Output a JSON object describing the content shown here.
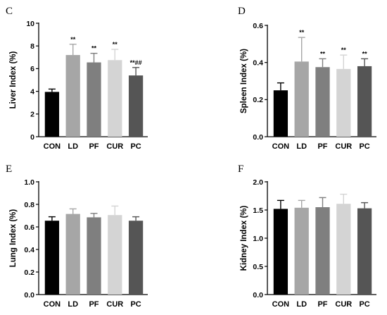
{
  "chart_data": [
    {
      "type": "bar",
      "panel": "C",
      "categories": [
        "CON",
        "LD",
        "PF",
        "CUR",
        "PC"
      ],
      "values": [
        3.95,
        7.2,
        6.55,
        6.75,
        5.4
      ],
      "errors": [
        0.25,
        0.95,
        0.8,
        0.95,
        0.7
      ],
      "significance": [
        "",
        "**",
        "**",
        "**",
        "**##"
      ],
      "ylabel": "Liver Index (%)",
      "ylim": [
        0,
        10
      ],
      "yticks": [
        0,
        2,
        4,
        6,
        8,
        10
      ],
      "colors": [
        "#000000",
        "#a6a6a6",
        "#7f7f7f",
        "#d4d4d4",
        "#555555"
      ]
    },
    {
      "type": "bar",
      "panel": "D",
      "categories": [
        "CON",
        "LD",
        "PF",
        "CUR",
        "PC"
      ],
      "values": [
        0.25,
        0.405,
        0.375,
        0.365,
        0.38
      ],
      "errors": [
        0.04,
        0.13,
        0.045,
        0.075,
        0.04
      ],
      "significance": [
        "",
        "**",
        "**",
        "**",
        "**"
      ],
      "ylabel": "Spleen Index (%)",
      "ylim": [
        0,
        0.6
      ],
      "yticks": [
        0.0,
        0.2,
        0.4,
        0.6
      ],
      "colors": [
        "#000000",
        "#a6a6a6",
        "#7f7f7f",
        "#d4d4d4",
        "#555555"
      ]
    },
    {
      "type": "bar",
      "panel": "E",
      "categories": [
        "CON",
        "LD",
        "PF",
        "CUR",
        "PC"
      ],
      "values": [
        0.655,
        0.715,
        0.685,
        0.705,
        0.655
      ],
      "errors": [
        0.035,
        0.045,
        0.035,
        0.08,
        0.035
      ],
      "significance": [
        "",
        "",
        "",
        "",
        ""
      ],
      "ylabel": "Lung Index (%)",
      "ylim": [
        0,
        1.0
      ],
      "yticks": [
        0.0,
        0.2,
        0.4,
        0.6,
        0.8,
        1.0
      ],
      "colors": [
        "#000000",
        "#a6a6a6",
        "#7f7f7f",
        "#d4d4d4",
        "#555555"
      ]
    },
    {
      "type": "bar",
      "panel": "F",
      "categories": [
        "CON",
        "LD",
        "PF",
        "CUR",
        "PC"
      ],
      "values": [
        1.52,
        1.54,
        1.55,
        1.61,
        1.53
      ],
      "errors": [
        0.15,
        0.13,
        0.17,
        0.17,
        0.1
      ],
      "significance": [
        "",
        "",
        "",
        "",
        ""
      ],
      "ylabel": "Kidney Index (%)",
      "ylim": [
        0,
        2.0
      ],
      "yticks": [
        0.0,
        0.5,
        1.0,
        1.5,
        2.0
      ],
      "colors": [
        "#000000",
        "#a6a6a6",
        "#7f7f7f",
        "#d4d4d4",
        "#555555"
      ]
    }
  ]
}
